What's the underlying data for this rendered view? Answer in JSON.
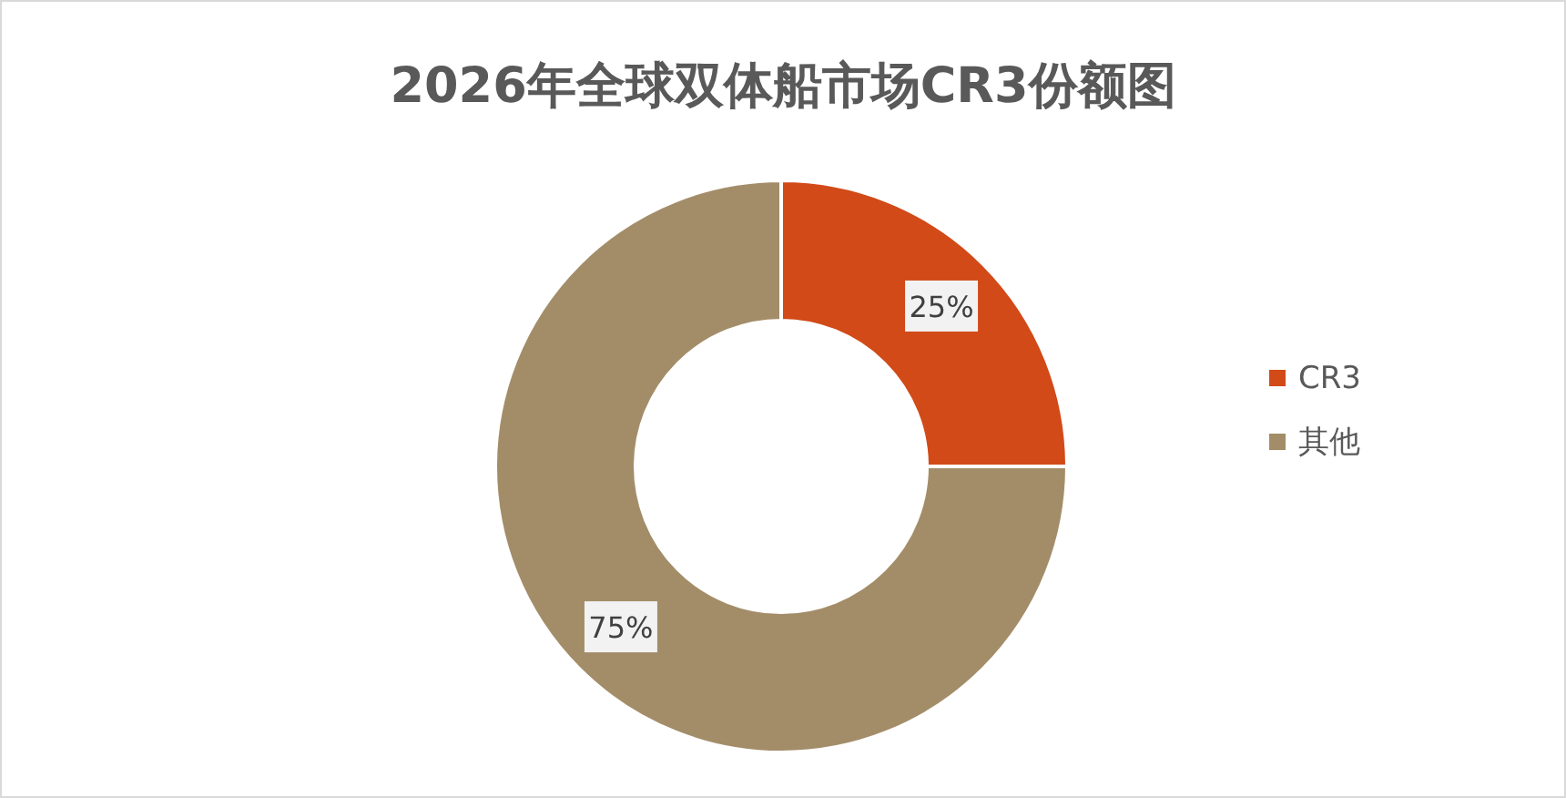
{
  "chart_data": {
    "type": "donut",
    "title": "2026年全球双体船市场CR3份额图",
    "categories": [
      "CR3",
      "其他"
    ],
    "values": [
      25,
      75
    ],
    "colors": [
      "#d14a18",
      "#a38d69"
    ],
    "value_labels": [
      "25%",
      "75%"
    ],
    "legend": "right"
  }
}
